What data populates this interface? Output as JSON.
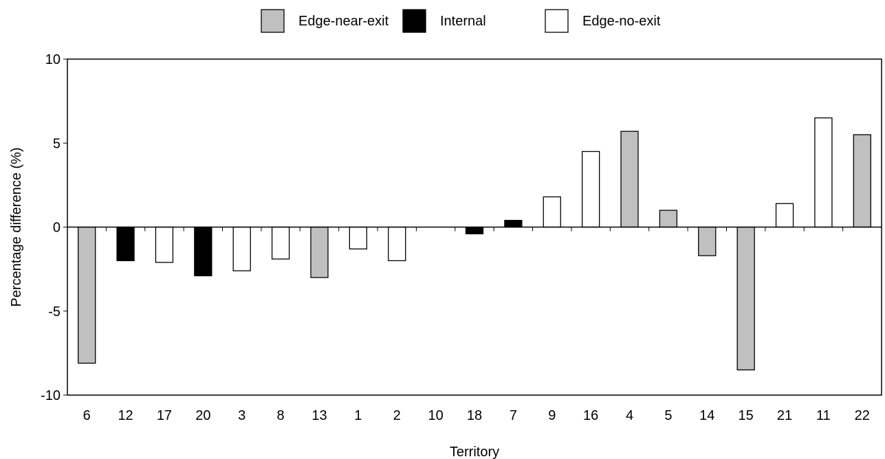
{
  "chart_data": {
    "type": "bar",
    "xlabel": "Territory",
    "ylabel": "Percentage difference (%)",
    "ylim": [
      -10,
      10
    ],
    "yticks": [
      -10,
      -5,
      0,
      5,
      10
    ],
    "ytick_labels": [
      "-10",
      "-5",
      "0",
      "5",
      "10"
    ],
    "grid": false,
    "legend_position": "top-center",
    "legend": [
      {
        "name": "Edge-near-exit",
        "color": "#c0c0c0"
      },
      {
        "name": "Internal",
        "color": "#000000"
      },
      {
        "name": "Edge-no-exit",
        "color": "#ffffff"
      }
    ],
    "categories": [
      "6",
      "12",
      "17",
      "20",
      "3",
      "8",
      "13",
      "1",
      "2",
      "10",
      "18",
      "7",
      "9",
      "16",
      "4",
      "5",
      "14",
      "15",
      "21",
      "11",
      "22"
    ],
    "values": [
      -8.1,
      -2.0,
      -2.1,
      -2.9,
      -2.6,
      -1.9,
      -3.0,
      -1.3,
      -2.0,
      0.0,
      -0.4,
      0.4,
      1.8,
      4.5,
      5.7,
      1.0,
      -1.7,
      -8.5,
      1.4,
      6.5,
      5.5
    ],
    "groups": [
      "Edge-near-exit",
      "Internal",
      "Edge-no-exit",
      "Internal",
      "Edge-no-exit",
      "Edge-no-exit",
      "Edge-near-exit",
      "Edge-no-exit",
      "Edge-no-exit",
      "Internal",
      "Internal",
      "Internal",
      "Edge-no-exit",
      "Edge-no-exit",
      "Edge-near-exit",
      "Edge-near-exit",
      "Edge-near-exit",
      "Edge-near-exit",
      "Edge-no-exit",
      "Edge-no-exit",
      "Edge-near-exit"
    ]
  }
}
